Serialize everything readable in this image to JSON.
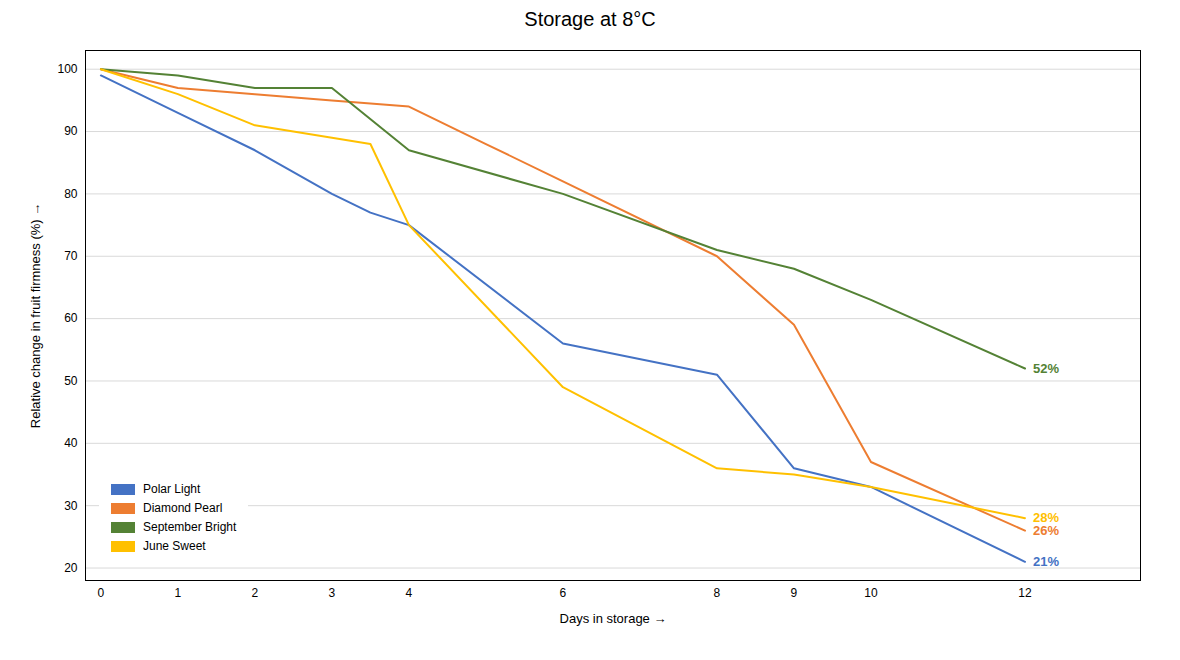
{
  "chart_data": {
    "type": "line",
    "title": "Storage at 8°C",
    "xlabel": "Days in storage",
    "ylabel": "Relative change in fruit firmness (%)",
    "series": [
      {
        "name": "Polar Light",
        "color": "#4472C4",
        "x": [
          0,
          1,
          2,
          3,
          3.5,
          4,
          6,
          8,
          9,
          10,
          12
        ],
        "values": [
          99,
          93,
          87,
          80,
          77,
          75,
          56,
          51,
          36,
          33,
          21
        ]
      },
      {
        "name": "Diamond Pearl",
        "color": "#ED7D31",
        "x": [
          0,
          1,
          2,
          3,
          4,
          5,
          6,
          8,
          9,
          10,
          12
        ],
        "values": [
          100,
          97,
          96,
          95,
          94,
          88,
          82,
          70,
          59,
          37,
          26
        ]
      },
      {
        "name": "September Bright",
        "color": "#548235",
        "x": [
          0,
          1,
          2,
          3,
          4,
          6,
          8,
          9,
          10,
          12
        ],
        "values": [
          100,
          99,
          97,
          97,
          87,
          80,
          71,
          68,
          63,
          52
        ]
      },
      {
        "name": "June Sweet",
        "color": "#FFC000",
        "x": [
          0,
          1,
          2,
          3,
          3.5,
          4,
          6,
          8,
          9,
          10,
          12
        ],
        "values": [
          100,
          96,
          91,
          89,
          88,
          75,
          49,
          36,
          35,
          33,
          28
        ]
      }
    ],
    "annotations": [
      {
        "x": 12,
        "y": 52,
        "text": "52%",
        "color": "#548235"
      },
      {
        "x": 12,
        "y": 28,
        "text": "28%",
        "color": "#FFC000"
      },
      {
        "x": 12,
        "y": 26,
        "text": "26%",
        "color": "#ED7D31"
      },
      {
        "x": 12,
        "y": 21,
        "text": "21%",
        "color": "#4472C4"
      }
    ],
    "xlim": [
      -0.2,
      13.5
    ],
    "ylim": [
      18,
      103
    ],
    "xticks": [
      0,
      1,
      2,
      3,
      4,
      6,
      8,
      9,
      10,
      12
    ],
    "yticks": [
      20,
      30,
      40,
      50,
      60,
      70,
      80,
      90,
      100
    ],
    "grid": "y",
    "legend": "lower left"
  }
}
